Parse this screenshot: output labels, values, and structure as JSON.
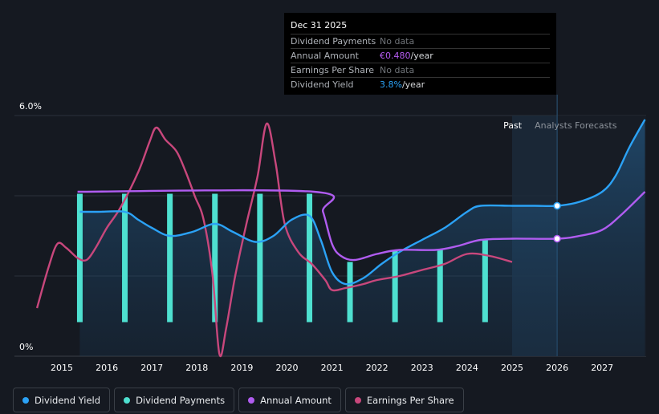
{
  "chart_data": {
    "type": "line",
    "title": "",
    "x_ticks": [
      "2015",
      "2016",
      "2017",
      "2018",
      "2019",
      "2020",
      "2021",
      "2022",
      "2023",
      "2024",
      "2025",
      "2026",
      "2027"
    ],
    "ylim": [
      0,
      6.0
    ],
    "y_ticks": [
      {
        "value": 6.0,
        "label": "6.0%"
      },
      {
        "value": 0,
        "label": "0%"
      }
    ],
    "past_label": "Past",
    "forecast_label": "Analysts Forecasts",
    "past_end_year": 2026.0,
    "forecast_start_year": 2025.0,
    "series": [
      {
        "name": "Dividend Yield",
        "color": "#2ba2f6",
        "type": "area",
        "points": [
          [
            2015.4,
            3.6
          ],
          [
            2015.8,
            3.6
          ],
          [
            2016.4,
            3.6
          ],
          [
            2016.7,
            3.4
          ],
          [
            2017.0,
            3.2
          ],
          [
            2017.4,
            3.0
          ],
          [
            2017.9,
            3.1
          ],
          [
            2018.4,
            3.3
          ],
          [
            2018.8,
            3.1
          ],
          [
            2019.3,
            2.85
          ],
          [
            2019.7,
            3.0
          ],
          [
            2020.1,
            3.4
          ],
          [
            2020.5,
            3.5
          ],
          [
            2020.75,
            2.9
          ],
          [
            2021.0,
            2.1
          ],
          [
            2021.3,
            1.8
          ],
          [
            2021.7,
            1.95
          ],
          [
            2022.1,
            2.3
          ],
          [
            2022.5,
            2.6
          ],
          [
            2023.0,
            2.9
          ],
          [
            2023.5,
            3.2
          ],
          [
            2024.0,
            3.6
          ],
          [
            2024.3,
            3.75
          ],
          [
            2025.0,
            3.75
          ],
          [
            2025.5,
            3.75
          ],
          [
            2026.0,
            3.75
          ],
          [
            2026.5,
            3.85
          ],
          [
            2027.0,
            4.1
          ],
          [
            2027.3,
            4.5
          ],
          [
            2027.6,
            5.2
          ],
          [
            2027.95,
            5.9
          ]
        ]
      },
      {
        "name": "Annual Amount",
        "color": "#b05cf0",
        "type": "line",
        "points": [
          [
            2015.35,
            4.1
          ],
          [
            2020.6,
            4.1
          ],
          [
            2020.8,
            3.6
          ],
          [
            2021.0,
            2.8
          ],
          [
            2021.2,
            2.5
          ],
          [
            2021.5,
            2.4
          ],
          [
            2022.0,
            2.55
          ],
          [
            2022.5,
            2.65
          ],
          [
            2023.3,
            2.65
          ],
          [
            2023.8,
            2.75
          ],
          [
            2024.3,
            2.9
          ],
          [
            2025.0,
            2.93
          ],
          [
            2026.0,
            2.93
          ],
          [
            2026.5,
            3.0
          ],
          [
            2027.0,
            3.15
          ],
          [
            2027.4,
            3.5
          ],
          [
            2027.95,
            4.1
          ]
        ]
      },
      {
        "name": "Earnings Per Share",
        "color": "#c8477c",
        "type": "line",
        "points": [
          [
            2014.45,
            1.2
          ],
          [
            2014.7,
            2.2
          ],
          [
            2014.9,
            2.8
          ],
          [
            2015.1,
            2.7
          ],
          [
            2015.35,
            2.45
          ],
          [
            2015.55,
            2.4
          ],
          [
            2015.75,
            2.7
          ],
          [
            2016.0,
            3.2
          ],
          [
            2016.3,
            3.7
          ],
          [
            2016.7,
            4.6
          ],
          [
            2016.95,
            5.35
          ],
          [
            2017.1,
            5.7
          ],
          [
            2017.3,
            5.4
          ],
          [
            2017.55,
            5.1
          ],
          [
            2017.75,
            4.6
          ],
          [
            2017.95,
            4.0
          ],
          [
            2018.15,
            3.4
          ],
          [
            2018.35,
            2.0
          ],
          [
            2018.5,
            0.05
          ],
          [
            2018.65,
            0.7
          ],
          [
            2018.85,
            2.0
          ],
          [
            2019.1,
            3.3
          ],
          [
            2019.35,
            4.5
          ],
          [
            2019.55,
            5.8
          ],
          [
            2019.75,
            4.8
          ],
          [
            2019.95,
            3.3
          ],
          [
            2020.25,
            2.6
          ],
          [
            2020.55,
            2.3
          ],
          [
            2020.85,
            1.9
          ],
          [
            2021.0,
            1.65
          ],
          [
            2021.3,
            1.7
          ],
          [
            2021.7,
            1.8
          ],
          [
            2022.0,
            1.9
          ],
          [
            2022.5,
            2.0
          ],
          [
            2023.0,
            2.15
          ],
          [
            2023.5,
            2.3
          ],
          [
            2024.0,
            2.55
          ],
          [
            2024.5,
            2.5
          ],
          [
            2025.0,
            2.35
          ]
        ]
      },
      {
        "name": "Dividend Payments",
        "color": "#4ee0d0",
        "type": "bar",
        "bars": [
          {
            "x": 2015.4,
            "value": 4.05
          },
          {
            "x": 2016.4,
            "value": 4.05
          },
          {
            "x": 2017.4,
            "value": 4.05
          },
          {
            "x": 2018.4,
            "value": 4.05
          },
          {
            "x": 2019.4,
            "value": 4.05
          },
          {
            "x": 2020.5,
            "value": 4.05
          },
          {
            "x": 2021.4,
            "value": 2.35
          },
          {
            "x": 2022.4,
            "value": 2.65
          },
          {
            "x": 2023.4,
            "value": 2.65
          },
          {
            "x": 2024.4,
            "value": 2.9
          }
        ],
        "bar_base": 0.85
      }
    ],
    "markers": [
      {
        "series": "Dividend Yield",
        "x": 2026.0,
        "y": 3.75
      },
      {
        "series": "Annual Amount",
        "x": 2026.0,
        "y": 2.93
      }
    ]
  },
  "tooltip": {
    "date": "Dec 31 2025",
    "rows": [
      {
        "label": "Dividend Payments",
        "value": "No data",
        "unit": ""
      },
      {
        "label": "Annual Amount",
        "value": "€0.480",
        "unit": "/year"
      },
      {
        "label": "Earnings Per Share",
        "value": "No data",
        "unit": ""
      },
      {
        "label": "Dividend Yield",
        "value": "3.8%",
        "unit": "/year"
      }
    ]
  },
  "legend": [
    {
      "label": "Dividend Yield",
      "color": "#2ba2f6"
    },
    {
      "label": "Dividend Payments",
      "color": "#4ee0d0"
    },
    {
      "label": "Annual Amount",
      "color": "#b05cf0"
    },
    {
      "label": "Earnings Per Share",
      "color": "#c8477c"
    }
  ]
}
